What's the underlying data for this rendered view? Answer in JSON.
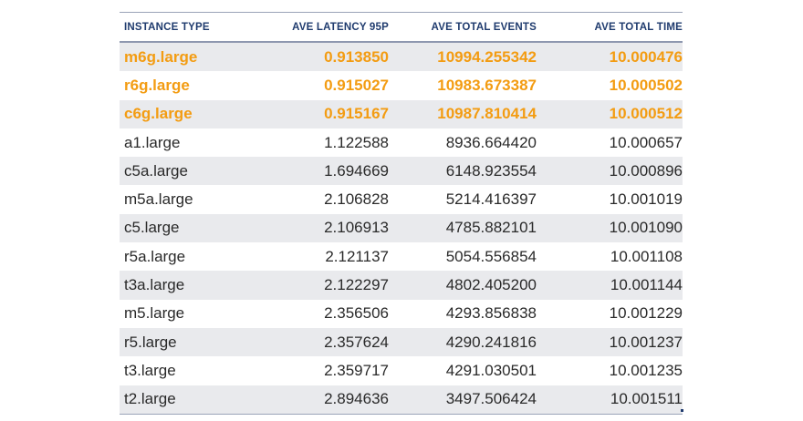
{
  "table": {
    "headers": {
      "instance_type": "INSTANCE TYPE",
      "latency": "AVE LATENCY 95P",
      "events": "AVE TOTAL EVENTS",
      "time": "AVE TOTAL TIME"
    },
    "rows": [
      {
        "instance_type": "m6g.large",
        "latency": "0.913850",
        "events": "10994.255342",
        "time": "10.000476",
        "highlight": true
      },
      {
        "instance_type": "r6g.large",
        "latency": "0.915027",
        "events": "10983.673387",
        "time": "10.000502",
        "highlight": true
      },
      {
        "instance_type": "c6g.large",
        "latency": "0.915167",
        "events": "10987.810414",
        "time": "10.000512",
        "highlight": true
      },
      {
        "instance_type": "a1.large",
        "latency": "1.122588",
        "events": "8936.664420",
        "time": "10.000657",
        "highlight": false
      },
      {
        "instance_type": "c5a.large",
        "latency": "1.694669",
        "events": "6148.923554",
        "time": "10.000896",
        "highlight": false
      },
      {
        "instance_type": "m5a.large",
        "latency": "2.106828",
        "events": "5214.416397",
        "time": "10.001019",
        "highlight": false
      },
      {
        "instance_type": "c5.large",
        "latency": "2.106913",
        "events": "4785.882101",
        "time": "10.001090",
        "highlight": false
      },
      {
        "instance_type": "r5a.large",
        "latency": "2.121137",
        "events": "5054.556854",
        "time": "10.001108",
        "highlight": false
      },
      {
        "instance_type": "t3a.large",
        "latency": "2.122297",
        "events": "4802.405200",
        "time": "10.001144",
        "highlight": false
      },
      {
        "instance_type": "m5.large",
        "latency": "2.356506",
        "events": "4293.856838",
        "time": "10.001229",
        "highlight": false
      },
      {
        "instance_type": "r5.large",
        "latency": "2.357624",
        "events": "4290.241816",
        "time": "10.001237",
        "highlight": false
      },
      {
        "instance_type": "t3.large",
        "latency": "2.359717",
        "events": "4291.030501",
        "time": "10.001235",
        "highlight": false
      },
      {
        "instance_type": "t2.large",
        "latency": "2.894636",
        "events": "3497.506424",
        "time": "10.001511",
        "highlight": false
      }
    ]
  },
  "colors": {
    "highlight": "#f39c12",
    "header_text": "#1f3b6e",
    "body_text": "#2a2a2a",
    "alt_row_bg": "#e9eaed"
  }
}
